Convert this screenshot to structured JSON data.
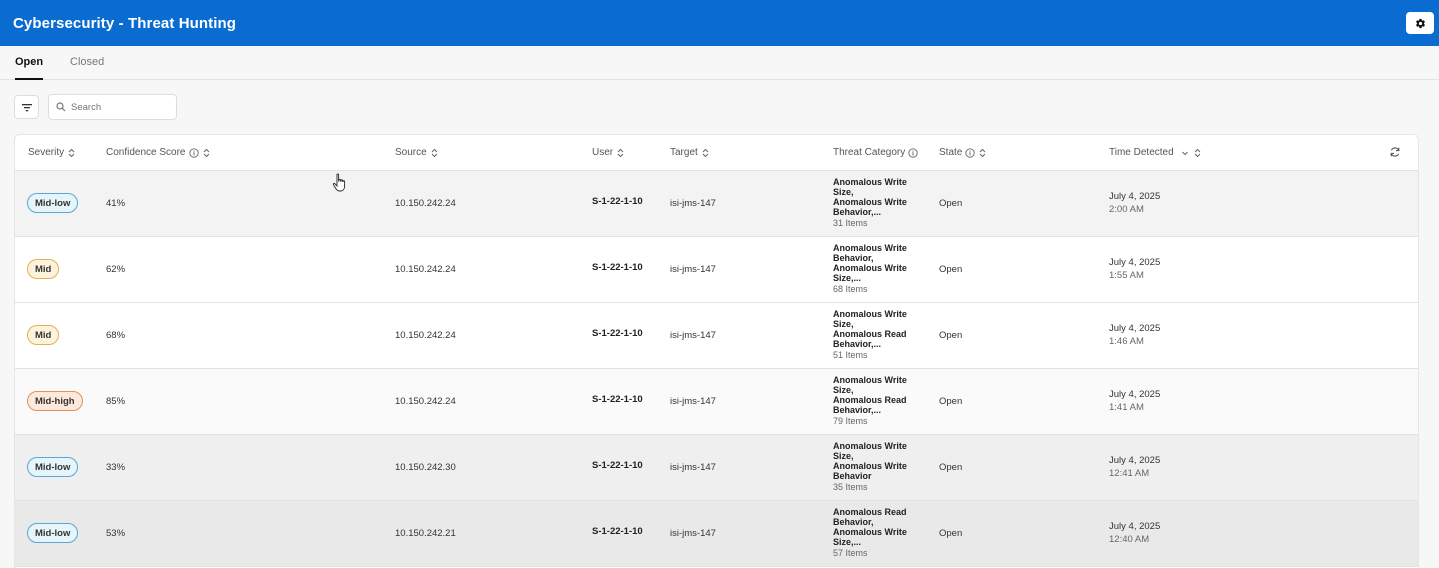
{
  "header": {
    "title": "Cybersecurity - Threat Hunting",
    "settings_icon": "gear-icon"
  },
  "tabs": [
    {
      "label": "Open",
      "active": true
    },
    {
      "label": "Closed",
      "active": false
    }
  ],
  "toolbar": {
    "filter_icon": "filter-icon",
    "search": {
      "placeholder": "Search",
      "value": ""
    }
  },
  "table": {
    "columns": {
      "severity": "Severity",
      "confidence": "Confidence Score",
      "source": "Source",
      "user": "User",
      "target": "Target",
      "category": "Threat Category",
      "state": "State",
      "time": "Time Detected"
    },
    "rows": [
      {
        "severity": "Mid-low",
        "confidence": "41%",
        "source": "10.150.242.24",
        "user": "S-1-22-1-10",
        "target": "isi-jms-147",
        "category_lines": [
          "Anomalous Write",
          "Size,",
          "Anomalous Write",
          "Behavior,..."
        ],
        "category_count": "31 Items",
        "state": "Open",
        "date": "July 4, 2025",
        "time": "2:00 AM"
      },
      {
        "severity": "Mid",
        "confidence": "62%",
        "source": "10.150.242.24",
        "user": "S-1-22-1-10",
        "target": "isi-jms-147",
        "category_lines": [
          "Anomalous Write",
          "Behavior,",
          "Anomalous Write",
          "Size,..."
        ],
        "category_count": "68 Items",
        "state": "Open",
        "date": "July 4, 2025",
        "time": "1:55 AM"
      },
      {
        "severity": "Mid",
        "confidence": "68%",
        "source": "10.150.242.24",
        "user": "S-1-22-1-10",
        "target": "isi-jms-147",
        "category_lines": [
          "Anomalous Write",
          "Size,",
          "Anomalous Read",
          "Behavior,..."
        ],
        "category_count": "51 Items",
        "state": "Open",
        "date": "July 4, 2025",
        "time": "1:46 AM"
      },
      {
        "severity": "Mid-high",
        "confidence": "85%",
        "source": "10.150.242.24",
        "user": "S-1-22-1-10",
        "target": "isi-jms-147",
        "category_lines": [
          "Anomalous Write",
          "Size,",
          "Anomalous Read",
          "Behavior,..."
        ],
        "category_count": "79 Items",
        "state": "Open",
        "date": "July 4, 2025",
        "time": "1:41 AM"
      },
      {
        "severity": "Mid-low",
        "confidence": "33%",
        "source": "10.150.242.30",
        "user": "S-1-22-1-10",
        "target": "isi-jms-147",
        "category_lines": [
          "Anomalous Write",
          "Size,",
          "Anomalous Write",
          "Behavior"
        ],
        "category_count": "35 Items",
        "state": "Open",
        "date": "July 4, 2025",
        "time": "12:41 AM"
      },
      {
        "severity": "Mid-low",
        "confidence": "53%",
        "source": "10.150.242.21",
        "user": "S-1-22-1-10",
        "target": "isi-jms-147",
        "category_lines": [
          "Anomalous Read",
          "Behavior,",
          "Anomalous Write",
          "Size,..."
        ],
        "category_count": "57 Items",
        "state": "Open",
        "date": "July 4, 2025",
        "time": "12:40 AM"
      }
    ]
  },
  "colors": {
    "header_bg": "#0a6cd1",
    "mid_low": "#5aa7d2",
    "mid": "#e0b350",
    "mid_high": "#e2905c"
  }
}
